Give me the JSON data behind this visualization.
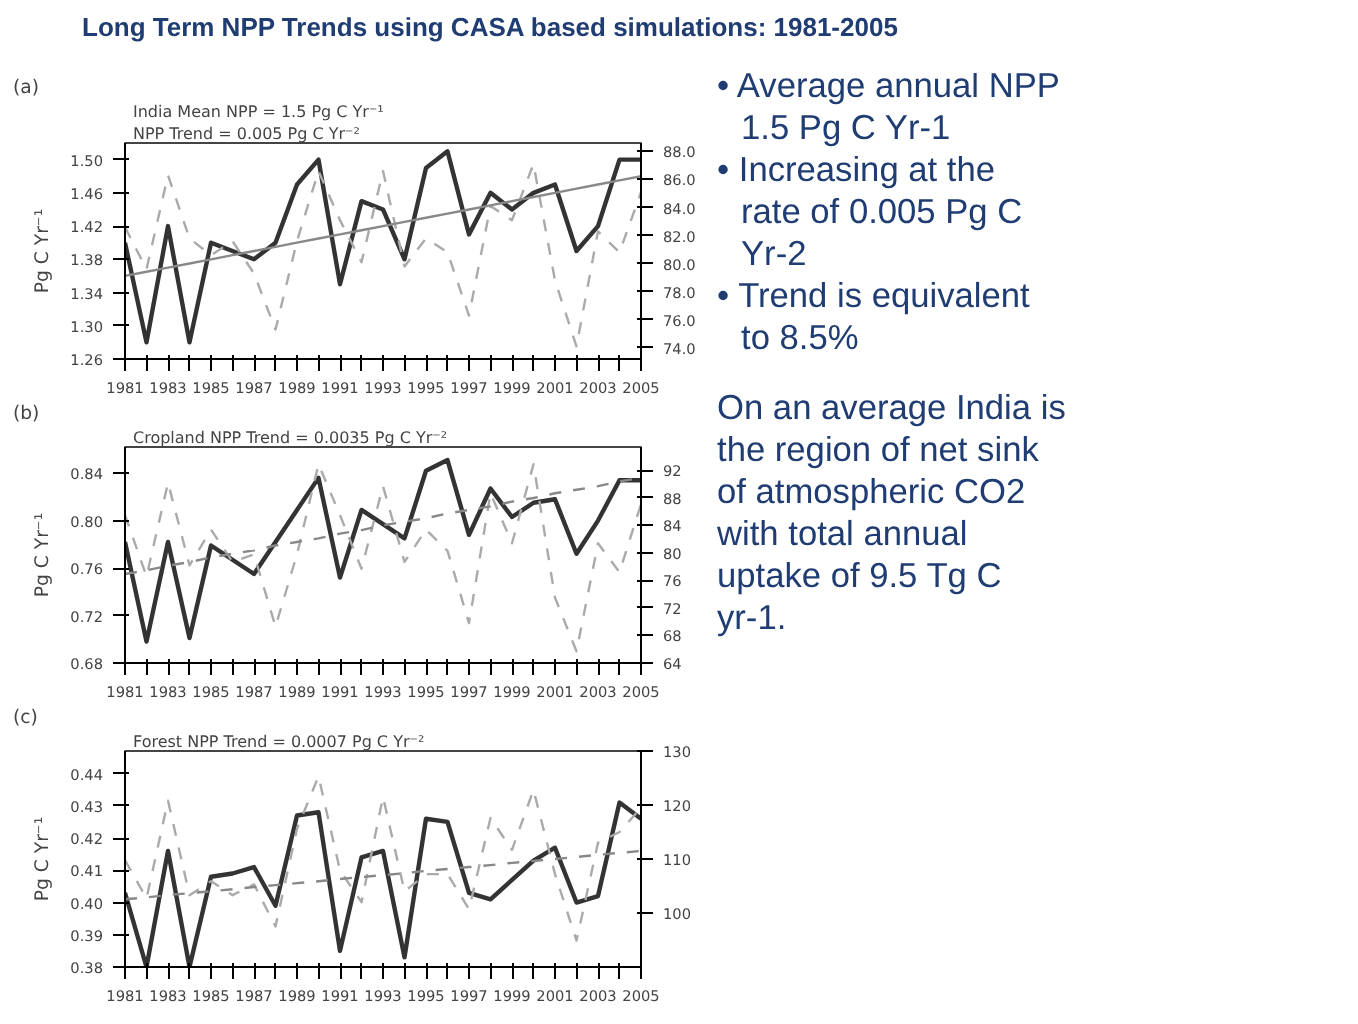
{
  "chart_data": [
    {
      "type": "line",
      "title": "Long Term NPP Trends using CASA based simulations: 1981-2005",
      "ylabel": "Pg C Yr⁻¹",
      "annotations": [
        "(a)",
        "India Mean NPP = 1.5 Pg C Yr⁻¹",
        "NPP Trend = 0.005 Pg C Yr⁻²"
      ],
      "x": [
        1981,
        1982,
        1983,
        1984,
        1985,
        1986,
        1987,
        1988,
        1989,
        1990,
        1991,
        1992,
        1993,
        1994,
        1995,
        1996,
        1997,
        1998,
        1999,
        2000,
        2001,
        2002,
        2003,
        2004,
        2005
      ],
      "xlim": [
        1981,
        2005
      ],
      "xticks": [
        1981,
        {
          "value": 1982,
          "label": null
        },
        1983,
        {
          "value": 1984,
          "label": null
        },
        1985,
        {
          "value": 1986,
          "label": null
        },
        1987,
        {
          "value": 1988,
          "label": null
        },
        1989,
        {
          "value": 1990,
          "label": null
        },
        1991,
        {
          "value": 1992,
          "label": null
        },
        1993,
        {
          "value": 1994,
          "label": null
        },
        1995,
        {
          "value": 1996,
          "label": null
        },
        1997,
        {
          "value": 1998,
          "label": null
        },
        1999,
        {
          "value": 2000,
          "label": null
        },
        2001,
        {
          "value": 2002,
          "label": null
        },
        2003,
        {
          "value": 2004,
          "label": null
        },
        2005
      ],
      "ylim": [
        1.26,
        1.52
      ],
      "yticks": [
        1.26,
        {
          "value": 1.3,
          "label": "1.30"
        },
        1.34,
        1.38,
        1.42,
        1.46,
        {
          "value": 1.5,
          "label": "1.50"
        }
      ],
      "y2lim": [
        73.2,
        88.6
      ],
      "y2ticks": [
        {
          "value": 74,
          "label": "74.0"
        },
        {
          "value": 76,
          "label": "76.0"
        },
        {
          "value": 78,
          "label": "78.0"
        },
        {
          "value": 80,
          "label": "80.0"
        },
        {
          "value": 82,
          "label": "82.0"
        },
        {
          "value": 84,
          "label": "84.0"
        },
        {
          "value": 86,
          "label": "86.0"
        },
        {
          "value": 88,
          "label": "88.0"
        }
      ],
      "grid": false,
      "line_style": "solid",
      "series": [
        {
          "color": "#333333",
          "values": [
            1.4,
            1.28,
            1.42,
            1.28,
            1.4,
            1.39,
            1.38,
            1.4,
            1.47,
            1.5,
            1.35,
            1.45,
            1.44,
            1.38,
            1.49,
            1.51,
            1.41,
            1.46,
            1.44,
            1.46,
            1.47,
            1.39,
            1.42,
            1.5,
            1.5
          ]
        },
        {
          "color": "#aaaaaa",
          "axis": "y2",
          "line_style": "dashed",
          "values": [
            82.6,
            79.6,
            86.3,
            81.8,
            80.6,
            81.6,
            79.3,
            75.3,
            81.6,
            86.6,
            83.1,
            80.1,
            86.6,
            79.8,
            81.8,
            80.8,
            76.3,
            84.1,
            83.1,
            87.1,
            78.8,
            74.1,
            82.3,
            80.8,
            85.1
          ]
        },
        {
          "color": "#888888",
          "line_style": "solid",
          "values": [
            1.36,
            1.365,
            1.37,
            1.375,
            1.38,
            1.385,
            1.39,
            1.395,
            1.4,
            1.405,
            1.41,
            1.415,
            1.42,
            1.425,
            1.43,
            1.435,
            1.44,
            1.445,
            1.45,
            1.455,
            1.46,
            1.465,
            1.47,
            1.475,
            1.48
          ]
        }
      ]
    },
    {
      "type": "line",
      "ylabel": "Pg C Yr⁻¹",
      "annotations": [
        "(b)",
        "Cropland NPP Trend = 0.0035 Pg C Yr⁻²"
      ],
      "x": [
        1981,
        1982,
        1983,
        1984,
        1985,
        1986,
        1987,
        1988,
        1989,
        1990,
        1991,
        1992,
        1993,
        1994,
        1995,
        1996,
        1997,
        1998,
        1999,
        2000,
        2001,
        2002,
        2003,
        2004,
        2005
      ],
      "xlim": [
        1981,
        2005
      ],
      "xticks": [
        1981,
        {
          "value": 1982,
          "label": null
        },
        1983,
        {
          "value": 1984,
          "label": null
        },
        1985,
        {
          "value": 1986,
          "label": null
        },
        1987,
        {
          "value": 1988,
          "label": null
        },
        1989,
        {
          "value": 1990,
          "label": null
        },
        1991,
        {
          "value": 1992,
          "label": null
        },
        1993,
        {
          "value": 1994,
          "label": null
        },
        1995,
        {
          "value": 1996,
          "label": null
        },
        1997,
        {
          "value": 1998,
          "label": null
        },
        1999,
        {
          "value": 2000,
          "label": null
        },
        2001,
        {
          "value": 2002,
          "label": null
        },
        2003,
        {
          "value": 2004,
          "label": null
        },
        2005
      ],
      "ylim": [
        0.68,
        0.862
      ],
      "yticks": [
        0.68,
        0.72,
        0.76,
        {
          "value": 0.8,
          "label": "0.80"
        },
        0.84
      ],
      "y2lim": [
        64,
        95.4
      ],
      "y2ticks": [
        64,
        68,
        72,
        76,
        80,
        84,
        88,
        92
      ],
      "grid": false,
      "line_style": "solid",
      "series": [
        {
          "color": "#333333",
          "values": [
            0.782,
            0.698,
            0.782,
            0.701,
            0.779,
            0.767,
            0.755,
            0.782,
            0.809,
            0.836,
            0.752,
            0.809,
            0.797,
            0.785,
            0.842,
            0.851,
            0.788,
            0.827,
            0.803,
            0.815,
            0.818,
            0.772,
            0.8,
            0.834,
            0.834
          ]
        },
        {
          "color": "#aaaaaa",
          "axis": "y2",
          "line_style": "dashed",
          "values": [
            85.5,
            76.6,
            90.2,
            78.2,
            83.4,
            78.7,
            79.8,
            69.3,
            79.8,
            92.9,
            85.5,
            77.7,
            89.7,
            78.7,
            83.4,
            80.3,
            69.8,
            88.7,
            81.4,
            92.9,
            73.5,
            65.7,
            81.4,
            77.2,
            87.1
          ]
        },
        {
          "color": "#888888",
          "line_style": "dashed",
          "values": [
            0.755,
            0.758,
            0.762,
            0.765,
            0.769,
            0.772,
            0.775,
            0.779,
            0.782,
            0.785,
            0.789,
            0.792,
            0.796,
            0.799,
            0.802,
            0.806,
            0.809,
            0.812,
            0.816,
            0.819,
            0.823,
            0.826,
            0.829,
            0.833,
            0.836
          ]
        }
      ]
    },
    {
      "type": "line",
      "ylabel": "Pg C Yr⁻¹",
      "annotations": [
        "(c)",
        "Forest NPP Trend = 0.0007 Pg C Yr⁻²"
      ],
      "x": [
        1981,
        1982,
        1983,
        1984,
        1985,
        1986,
        1987,
        1988,
        1989,
        1990,
        1991,
        1992,
        1993,
        1994,
        1995,
        1996,
        1997,
        1998,
        1999,
        2000,
        2001,
        2002,
        2003,
        2004,
        2005
      ],
      "xlim": [
        1981,
        2005
      ],
      "xticks": [
        1981,
        {
          "value": 1982,
          "label": null
        },
        1983,
        {
          "value": 1984,
          "label": null
        },
        1985,
        {
          "value": 1986,
          "label": null
        },
        1987,
        {
          "value": 1988,
          "label": null
        },
        1989,
        {
          "value": 1990,
          "label": null
        },
        1991,
        {
          "value": 1992,
          "label": null
        },
        1993,
        {
          "value": 1994,
          "label": null
        },
        1995,
        {
          "value": 1996,
          "label": null
        },
        1997,
        {
          "value": 1998,
          "label": null
        },
        1999,
        {
          "value": 2000,
          "label": null
        },
        2001,
        {
          "value": 2002,
          "label": null
        },
        2003,
        {
          "value": 2004,
          "label": null
        },
        2005
      ],
      "ylim": [
        0.38,
        0.447
      ],
      "yticks": [
        0.38,
        0.39,
        {
          "value": 0.4,
          "label": "0.40"
        },
        0.41,
        0.42,
        0.43,
        0.44
      ],
      "y2lim": [
        90,
        130
      ],
      "y2ticks": [
        100,
        110,
        120,
        130
      ],
      "grid": false,
      "line_style": "solid",
      "series": [
        {
          "color": "#333333",
          "values": [
            0.403,
            0.38,
            0.416,
            0.38,
            0.408,
            0.409,
            0.411,
            0.399,
            0.427,
            0.428,
            0.385,
            0.414,
            0.416,
            0.383,
            0.426,
            0.425,
            0.403,
            0.401,
            0.407,
            0.413,
            0.417,
            0.4,
            0.402,
            0.431,
            0.426
          ]
        },
        {
          "color": "#aaaaaa",
          "axis": "y2",
          "line_style": "dashed",
          "values": [
            109.8,
            102.7,
            120.8,
            103.3,
            105.9,
            103.3,
            105.3,
            97.5,
            115.6,
            125.3,
            107.9,
            102.0,
            121.5,
            104.0,
            107.2,
            107.2,
            100.7,
            117.6,
            111.7,
            122.8,
            107.2,
            94.9,
            113.0,
            115.0,
            119.5
          ]
        },
        {
          "color": "#888888",
          "line_style": "dashed",
          "values": [
            0.401,
            0.4016,
            0.4023,
            0.4029,
            0.4035,
            0.4041,
            0.4048,
            0.4054,
            0.406,
            0.4066,
            0.4073,
            0.4079,
            0.4085,
            0.4091,
            0.4098,
            0.4104,
            0.411,
            0.4116,
            0.4123,
            0.4129,
            0.4135,
            0.4141,
            0.4148,
            0.4154,
            0.416
          ]
        }
      ]
    },
    {
      "type": "other",
      "annotations": [
        "• Average annual NPP 1.5 Pg C Yr-1",
        "• Increasing at the rate of 0.005 Pg C Yr-2",
        "• Trend is equivalent to 8.5%",
        "On an average India is the region of net sink of atmospheric CO2 with total annual uptake of 9.5 Tg C yr-1."
      ]
    }
  ]
}
